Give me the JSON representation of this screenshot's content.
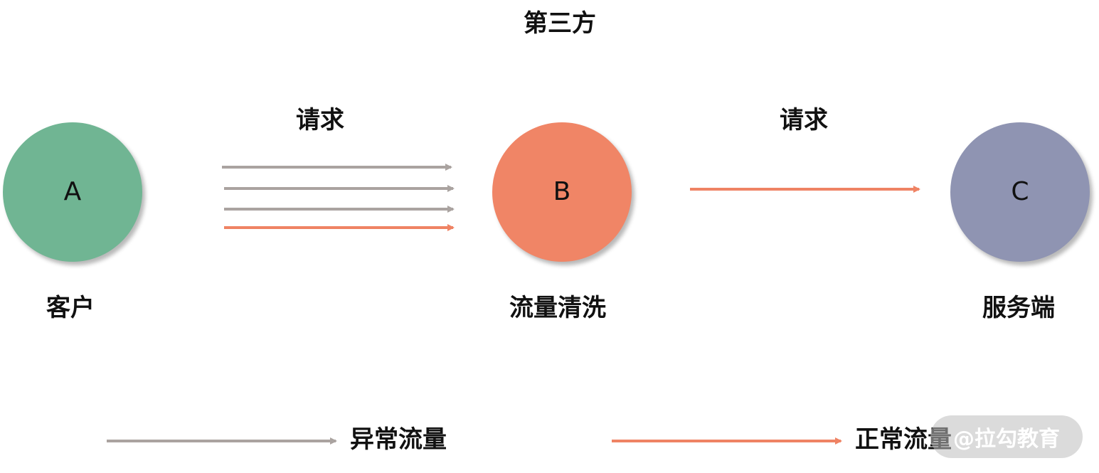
{
  "colors": {
    "node_a": "#70b593",
    "node_b": "#f08566",
    "node_c": "#8f94b2",
    "abnormal_arrow": "#aaa3a0",
    "normal_arrow": "#ef8364"
  },
  "diagram": {
    "title": "第三方",
    "nodes": {
      "a": {
        "letter": "A",
        "caption": "客户"
      },
      "b": {
        "letter": "B",
        "caption": "流量清洗"
      },
      "c": {
        "letter": "C",
        "caption": "服务端"
      }
    },
    "edges": {
      "a_to_b_label": "请求",
      "b_to_c_label": "请求"
    }
  },
  "legend": {
    "abnormal_label": "异常流量",
    "normal_label": "正常流量"
  },
  "watermark": {
    "text": "@拉勾教育"
  }
}
